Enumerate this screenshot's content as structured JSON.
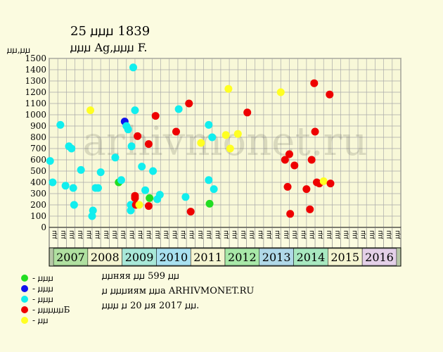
{
  "chart_data": {
    "type": "scatter",
    "title": "25 ꙡꙡꙡ 1839",
    "subtitle": "ꙡꙡꙡ Ag,ꙡꙡꙡ F.",
    "ylabel": "ꙡꙡ,ꙡꙡ",
    "ylim": [
      0,
      1500
    ],
    "yticks": [
      0,
      100,
      200,
      300,
      400,
      500,
      600,
      700,
      800,
      900,
      1000,
      1100,
      1200,
      1300,
      1400,
      1500
    ],
    "grid": true,
    "watermark": "arhivmonet.ru",
    "quarter_labels": [
      "ꙡꙡ",
      "ꙡꙡ",
      "ꙡꙡ",
      "ꙡꙡ"
    ],
    "years": [
      "2007",
      "2008",
      "2009",
      "2010",
      "2011",
      "2012",
      "2013",
      "2014",
      "2015",
      "2016"
    ],
    "year_colors": [
      "#b0e0a0",
      "#f4f4d0",
      "#a8e8d8",
      "#a8e0f0",
      "#f4f4d0",
      "#a8e8a8",
      "#b0d8e8",
      "#a8e8c0",
      "#f4f4d0",
      "#e4d0e8"
    ],
    "categories": [
      "green",
      "blue",
      "cyan",
      "red",
      "yellow"
    ],
    "category_colors": {
      "green": "#22dd22",
      "blue": "#1111ee",
      "cyan": "#11eeee",
      "red": "#ee0000",
      "yellow": "#ffff22"
    },
    "points": [
      {
        "q": 0.1,
        "y": 590,
        "c": "cyan"
      },
      {
        "q": 0.4,
        "y": 400,
        "c": "cyan"
      },
      {
        "q": 1.3,
        "y": 910,
        "c": "cyan"
      },
      {
        "q": 1.9,
        "y": 370,
        "c": "cyan"
      },
      {
        "q": 2.3,
        "y": 720,
        "c": "cyan"
      },
      {
        "q": 2.6,
        "y": 700,
        "c": "cyan"
      },
      {
        "q": 2.8,
        "y": 350,
        "c": "cyan"
      },
      {
        "q": 2.9,
        "y": 200,
        "c": "cyan"
      },
      {
        "q": 3.7,
        "y": 510,
        "c": "cyan"
      },
      {
        "q": 4.8,
        "y": 1040,
        "c": "yellow"
      },
      {
        "q": 5.0,
        "y": 100,
        "c": "cyan"
      },
      {
        "q": 5.1,
        "y": 150,
        "c": "cyan"
      },
      {
        "q": 5.4,
        "y": 350,
        "c": "cyan"
      },
      {
        "q": 5.7,
        "y": 350,
        "c": "cyan"
      },
      {
        "q": 6.0,
        "y": 490,
        "c": "cyan"
      },
      {
        "q": 7.7,
        "y": 620,
        "c": "cyan"
      },
      {
        "q": 8.1,
        "y": 400,
        "c": "green"
      },
      {
        "q": 8.4,
        "y": 420,
        "c": "cyan"
      },
      {
        "q": 8.8,
        "y": 940,
        "c": "blue"
      },
      {
        "q": 9.0,
        "y": 900,
        "c": "cyan"
      },
      {
        "q": 9.2,
        "y": 870,
        "c": "cyan"
      },
      {
        "q": 9.5,
        "y": 150,
        "c": "cyan"
      },
      {
        "q": 9.5,
        "y": 200,
        "c": "cyan"
      },
      {
        "q": 9.6,
        "y": 720,
        "c": "cyan"
      },
      {
        "q": 9.8,
        "y": 1420,
        "c": "cyan"
      },
      {
        "q": 10.0,
        "y": 1040,
        "c": "cyan"
      },
      {
        "q": 10.0,
        "y": 280,
        "c": "red"
      },
      {
        "q": 10.0,
        "y": 260,
        "c": "red"
      },
      {
        "q": 10.1,
        "y": 200,
        "c": "red"
      },
      {
        "q": 10.3,
        "y": 810,
        "c": "red"
      },
      {
        "q": 10.5,
        "y": 200,
        "c": "yellow"
      },
      {
        "q": 10.8,
        "y": 540,
        "c": "cyan"
      },
      {
        "q": 11.2,
        "y": 330,
        "c": "cyan"
      },
      {
        "q": 11.6,
        "y": 190,
        "c": "red"
      },
      {
        "q": 11.6,
        "y": 740,
        "c": "red"
      },
      {
        "q": 11.7,
        "y": 260,
        "c": "green"
      },
      {
        "q": 12.1,
        "y": 500,
        "c": "cyan"
      },
      {
        "q": 12.4,
        "y": 990,
        "c": "red"
      },
      {
        "q": 12.6,
        "y": 250,
        "c": "cyan"
      },
      {
        "q": 12.9,
        "y": 290,
        "c": "cyan"
      },
      {
        "q": 14.8,
        "y": 850,
        "c": "red"
      },
      {
        "q": 15.1,
        "y": 1050,
        "c": "cyan"
      },
      {
        "q": 15.9,
        "y": 270,
        "c": "cyan"
      },
      {
        "q": 16.3,
        "y": 1100,
        "c": "red"
      },
      {
        "q": 16.5,
        "y": 140,
        "c": "red"
      },
      {
        "q": 17.7,
        "y": 750,
        "c": "yellow"
      },
      {
        "q": 18.6,
        "y": 420,
        "c": "cyan"
      },
      {
        "q": 18.6,
        "y": 910,
        "c": "cyan"
      },
      {
        "q": 18.7,
        "y": 210,
        "c": "green"
      },
      {
        "q": 19.0,
        "y": 800,
        "c": "cyan"
      },
      {
        "q": 19.2,
        "y": 340,
        "c": "cyan"
      },
      {
        "q": 20.6,
        "y": 820,
        "c": "yellow"
      },
      {
        "q": 20.9,
        "y": 1230,
        "c": "yellow"
      },
      {
        "q": 21.1,
        "y": 700,
        "c": "yellow"
      },
      {
        "q": 22.0,
        "y": 830,
        "c": "yellow"
      },
      {
        "q": 23.1,
        "y": 1020,
        "c": "red"
      },
      {
        "q": 27.0,
        "y": 1200,
        "c": "yellow"
      },
      {
        "q": 27.5,
        "y": 600,
        "c": "red"
      },
      {
        "q": 27.8,
        "y": 360,
        "c": "red"
      },
      {
        "q": 28.0,
        "y": 650,
        "c": "red"
      },
      {
        "q": 28.1,
        "y": 120,
        "c": "red"
      },
      {
        "q": 28.6,
        "y": 550,
        "c": "red"
      },
      {
        "q": 30.0,
        "y": 340,
        "c": "red"
      },
      {
        "q": 30.4,
        "y": 160,
        "c": "red"
      },
      {
        "q": 30.6,
        "y": 600,
        "c": "red"
      },
      {
        "q": 30.9,
        "y": 1280,
        "c": "red"
      },
      {
        "q": 31.0,
        "y": 850,
        "c": "red"
      },
      {
        "q": 31.2,
        "y": 400,
        "c": "red"
      },
      {
        "q": 31.5,
        "y": 390,
        "c": "red"
      },
      {
        "q": 32.0,
        "y": 410,
        "c": "yellow"
      },
      {
        "q": 32.7,
        "y": 1180,
        "c": "red"
      },
      {
        "q": 32.8,
        "y": 390,
        "c": "red"
      }
    ]
  },
  "legend": [
    {
      "color": "#22dd22",
      "label": "- ꙡꙡꙡ"
    },
    {
      "color": "#1111ee",
      "label": "- ꙡꙡꙡ"
    },
    {
      "color": "#11eeee",
      "label": "- ꙡꙡꙡ"
    },
    {
      "color": "#ee0000",
      "label": "- ꙡꙡꙡꙡꙡБ"
    },
    {
      "color": "#ffff22",
      "label": "- ꙡꙡ"
    }
  ],
  "info": [
    "ꙡꙡняя ꙡꙡ 599 ꙡꙡ",
    "ꙡ ꙡꙡꙡиям ꙡꙡа ARHIVMONET.RU",
    "ꙡꙡꙡ ꙡ 20 ꙡя 2017 ꙡꙡ."
  ]
}
